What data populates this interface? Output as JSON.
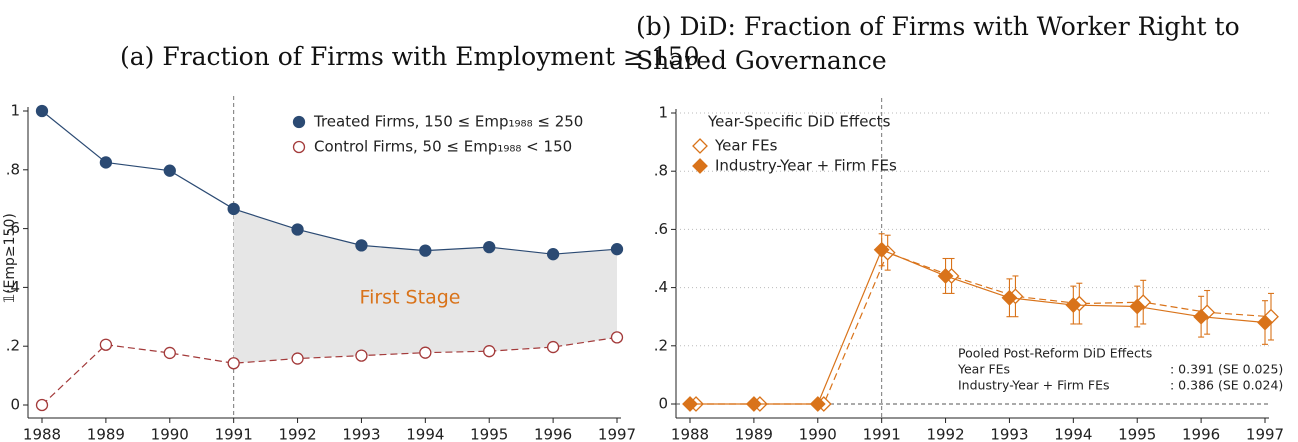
{
  "chart_data": [
    {
      "type": "line",
      "title": "(a) Fraction of Firms with Employment ≥ 150",
      "y_label": "𝟙(Emp≥150)",
      "annotation": "First Stage",
      "x": [
        1988,
        1989,
        1990,
        1991,
        1992,
        1993,
        1994,
        1995,
        1996,
        1997
      ],
      "xlim": [
        1988,
        1997
      ],
      "xticks": [
        1988,
        1989,
        1990,
        1991,
        1992,
        1993,
        1994,
        1995,
        1996,
        1997
      ],
      "ylim": [
        0,
        1
      ],
      "yticks": [
        0,
        {
          "value": 0.2,
          "label": ".2"
        },
        {
          "value": 0.4,
          "label": ".4"
        },
        {
          "value": 0.6,
          "label": ".6"
        },
        {
          "value": 0.8,
          "label": ".8"
        },
        1
      ],
      "grid": false,
      "vline": 1991,
      "shade_between_series": true,
      "legend_position": "top-right",
      "series": [
        {
          "name": "Treated Firms, 150 ≤ Emp₁₉₈₈ ≤ 250",
          "color": "#2b4a73",
          "marker": "circle",
          "marker_fill": true,
          "linestyle": "solid",
          "values": [
            1,
            0.825,
            0.797,
            0.667,
            0.597,
            0.543,
            0.525,
            0.537,
            0.513,
            0.53
          ]
        },
        {
          "name": "Control Firms, 50 ≤ Emp₁₉₈₈ < 150",
          "color": "#a33a3a",
          "marker": "circle",
          "marker_fill": false,
          "linestyle": "dashed",
          "values": [
            0,
            0.205,
            0.177,
            0.142,
            0.158,
            0.168,
            0.178,
            0.183,
            0.197,
            0.23
          ]
        }
      ]
    },
    {
      "type": "line",
      "title": "(b) DiD: Fraction of Firms with Worker Right to Shared Governance",
      "legend_title": "Year-Specific DiD Effects",
      "x": [
        1988,
        1989,
        1990,
        1991,
        1992,
        1993,
        1994,
        1995,
        1996,
        1997
      ],
      "xlim": [
        1988,
        1997
      ],
      "xticks": [
        1988,
        1989,
        1990,
        1991,
        1992,
        1993,
        1994,
        1995,
        1996,
        1997
      ],
      "ylim": [
        0,
        1
      ],
      "yticks": [
        0,
        {
          "value": 0.2,
          "label": ".2"
        },
        {
          "value": 0.4,
          "label": ".4"
        },
        {
          "value": 0.6,
          "label": ".6"
        },
        {
          "value": 0.8,
          "label": ".8"
        },
        1
      ],
      "grid": true,
      "vline": 1991,
      "hline": 0,
      "legend_position": "top-left",
      "pooled": {
        "title": "Pooled Post-Reform DiD Effects",
        "rows": [
          [
            "Year FEs",
            ": 0.391 (SE 0.025)"
          ],
          [
            "Industry-Year + Firm FEs",
            ": 0.386 (SE 0.024)"
          ]
        ]
      },
      "series": [
        {
          "name": "Year FEs",
          "color": "#d9731a",
          "marker": "diamond",
          "marker_fill": false,
          "linestyle": "dashed",
          "values": [
            0,
            0,
            0,
            0.52,
            0.44,
            0.37,
            0.345,
            0.35,
            0.315,
            0.3
          ],
          "errors": [
            null,
            null,
            null,
            0.06,
            0.06,
            0.07,
            0.07,
            0.075,
            0.075,
            0.08
          ]
        },
        {
          "name": "Industry-Year + Firm FEs",
          "color": "#d9731a",
          "marker": "diamond",
          "marker_fill": true,
          "linestyle": "solid",
          "values": [
            0,
            0,
            0,
            0.53,
            0.44,
            0.365,
            0.34,
            0.335,
            0.3,
            0.28
          ],
          "errors": [
            null,
            null,
            null,
            0.055,
            0.06,
            0.065,
            0.065,
            0.07,
            0.07,
            0.075
          ]
        }
      ]
    }
  ]
}
